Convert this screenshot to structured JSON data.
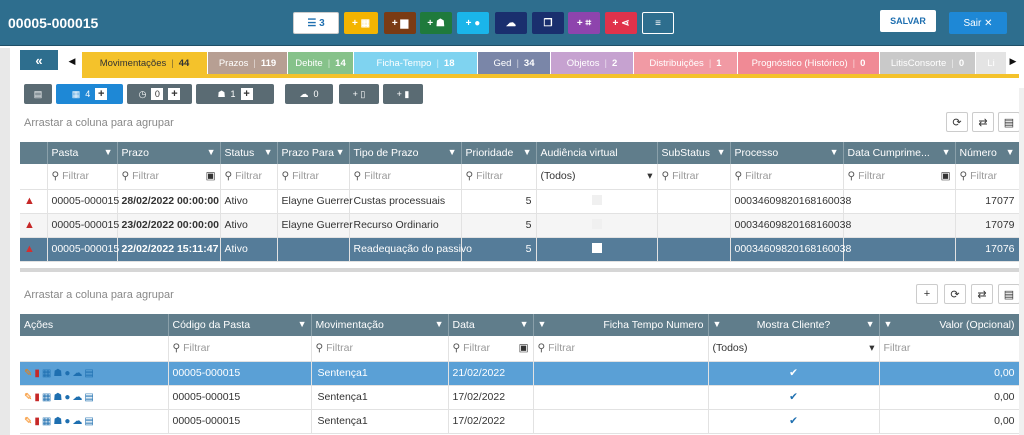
{
  "header": {
    "title": "00005-000015",
    "save_label": "SALVAR",
    "exit_label": "Sair ✕"
  },
  "toolbar": [
    {
      "name": "list-button",
      "icon": "list-icon",
      "text": "☰ 3",
      "color": "#ffffff",
      "fg": "#1e6fb0"
    },
    {
      "name": "add-calendar-button",
      "icon": "calendar-plus-icon",
      "text": "+ ▦",
      "color": "#f4b400"
    },
    {
      "name": "add-briefcase-button",
      "icon": "briefcase-plus-icon",
      "text": "+ ▆",
      "color": "#7a3b14"
    },
    {
      "name": "add-person-button",
      "icon": "person-plus-icon",
      "text": "+ ☗",
      "color": "#1f7a3c"
    },
    {
      "name": "add-clock-button",
      "icon": "clock-plus-icon",
      "text": "+ ●",
      "color": "#1ab5ea"
    },
    {
      "name": "cloud-upload-button",
      "icon": "cloud-upload-icon",
      "text": "☁",
      "color": "#1a2f6e"
    },
    {
      "name": "copy-button",
      "icon": "copy-icon",
      "text": "❐",
      "color": "#1a2f6e"
    },
    {
      "name": "add-frame-button",
      "icon": "frame-plus-icon",
      "text": "+ ⌗",
      "color": "#8e44ad"
    },
    {
      "name": "add-share-button",
      "icon": "share-plus-icon",
      "text": "+ ⋖",
      "color": "#e0324b"
    },
    {
      "name": "menu-button",
      "icon": "menu-icon",
      "text": "≡",
      "color": "#2e6e8e"
    }
  ],
  "tabs": [
    {
      "label": "Movimentações",
      "count": "44",
      "bg": "#f4c22b",
      "fg": "#333"
    },
    {
      "label": "Prazos",
      "count": "119",
      "bg": "#b79f93",
      "fg": "#fff"
    },
    {
      "label": "Debite",
      "count": "14",
      "bg": "#86c28a",
      "fg": "#fff"
    },
    {
      "label": "Ficha-Tempo",
      "count": "18",
      "bg": "#7fd3f0",
      "fg": "#fff"
    },
    {
      "label": "Ged",
      "count": "34",
      "bg": "#7a86a8",
      "fg": "#fff"
    },
    {
      "label": "Objetos",
      "count": "2",
      "bg": "#c6a2d0",
      "fg": "#fff"
    },
    {
      "label": "Distribuições",
      "count": "1",
      "bg": "#f19aa4",
      "fg": "#fff"
    },
    {
      "label": "Prognóstico (Histórico)",
      "count": "0",
      "bg": "#f08a95",
      "fg": "#fff"
    },
    {
      "label": "LitisConsorte",
      "count": "0",
      "bg": "#c9c9c9",
      "fg": "#fff"
    },
    {
      "label": "Li",
      "count": "",
      "bg": "#e4e4e4",
      "fg": "#fff"
    }
  ],
  "subbar": [
    {
      "icon": "list-icon",
      "count": "",
      "plus": false,
      "active": false
    },
    {
      "icon": "calendar-icon",
      "count": "4",
      "plus": true,
      "active": true
    },
    {
      "icon": "clock-icon",
      "count": "0",
      "plus": true,
      "active": false
    },
    {
      "icon": "person-icon",
      "count": "1",
      "plus": true,
      "active": false
    },
    {
      "icon": "cloud-icon",
      "count": "0",
      "plus": false,
      "active": false
    },
    {
      "icon": "doc-plus-icon",
      "count": "",
      "plus": false,
      "active": false
    },
    {
      "icon": "trash-plus-icon",
      "count": "",
      "plus": false,
      "active": false
    }
  ],
  "group_hint": "Arrastar a coluna para agrupar",
  "filter_placeholder": "Filtrar",
  "all_option": "(Todos)",
  "grid1": {
    "columns": [
      "",
      "Pasta",
      "Prazo",
      "Status",
      "Prazo Para",
      "Tipo de Prazo",
      "Prioridade",
      "Audiência virtual",
      "SubStatus",
      "Processo",
      "Data Cumprime...",
      "Número"
    ],
    "rows": [
      {
        "pasta": "00005-000015",
        "prazo": "28/02/2022 00:00:00",
        "status": "Ativo",
        "para": "Elayne Guerrer",
        "tipo": "Custas processuais",
        "prio": "5",
        "proc": "00034609820168160038",
        "num": "17077"
      },
      {
        "pasta": "00005-000015",
        "prazo": "23/02/2022 00:00:00",
        "status": "Ativo",
        "para": "Elayne Guerrer",
        "tipo": "Recurso Ordinario",
        "prio": "5",
        "proc": "00034609820168160038",
        "num": "17079"
      },
      {
        "pasta": "00005-000015",
        "prazo": "22/02/2022 15:11:47",
        "status": "Ativo",
        "para": "",
        "tipo": "Readequação do passivo",
        "prio": "5",
        "proc": "00034609820168160038",
        "num": "17076"
      }
    ]
  },
  "grid2": {
    "columns": [
      "Ações",
      "Código da Pasta",
      "Movimentação",
      "Data",
      "Ficha Tempo Numero",
      "Mostra Cliente?",
      "Valor (Opcional)"
    ],
    "rows": [
      {
        "codigo": "00005-000015",
        "mov": "Sentença1",
        "data": "21/02/2022",
        "valor": "0,00"
      },
      {
        "codigo": "00005-000015",
        "mov": "Sentença1",
        "data": "17/02/2022",
        "valor": "0,00"
      },
      {
        "codigo": "00005-000015",
        "mov": "Sentença1",
        "data": "17/02/2022",
        "valor": "0,00"
      }
    ]
  }
}
